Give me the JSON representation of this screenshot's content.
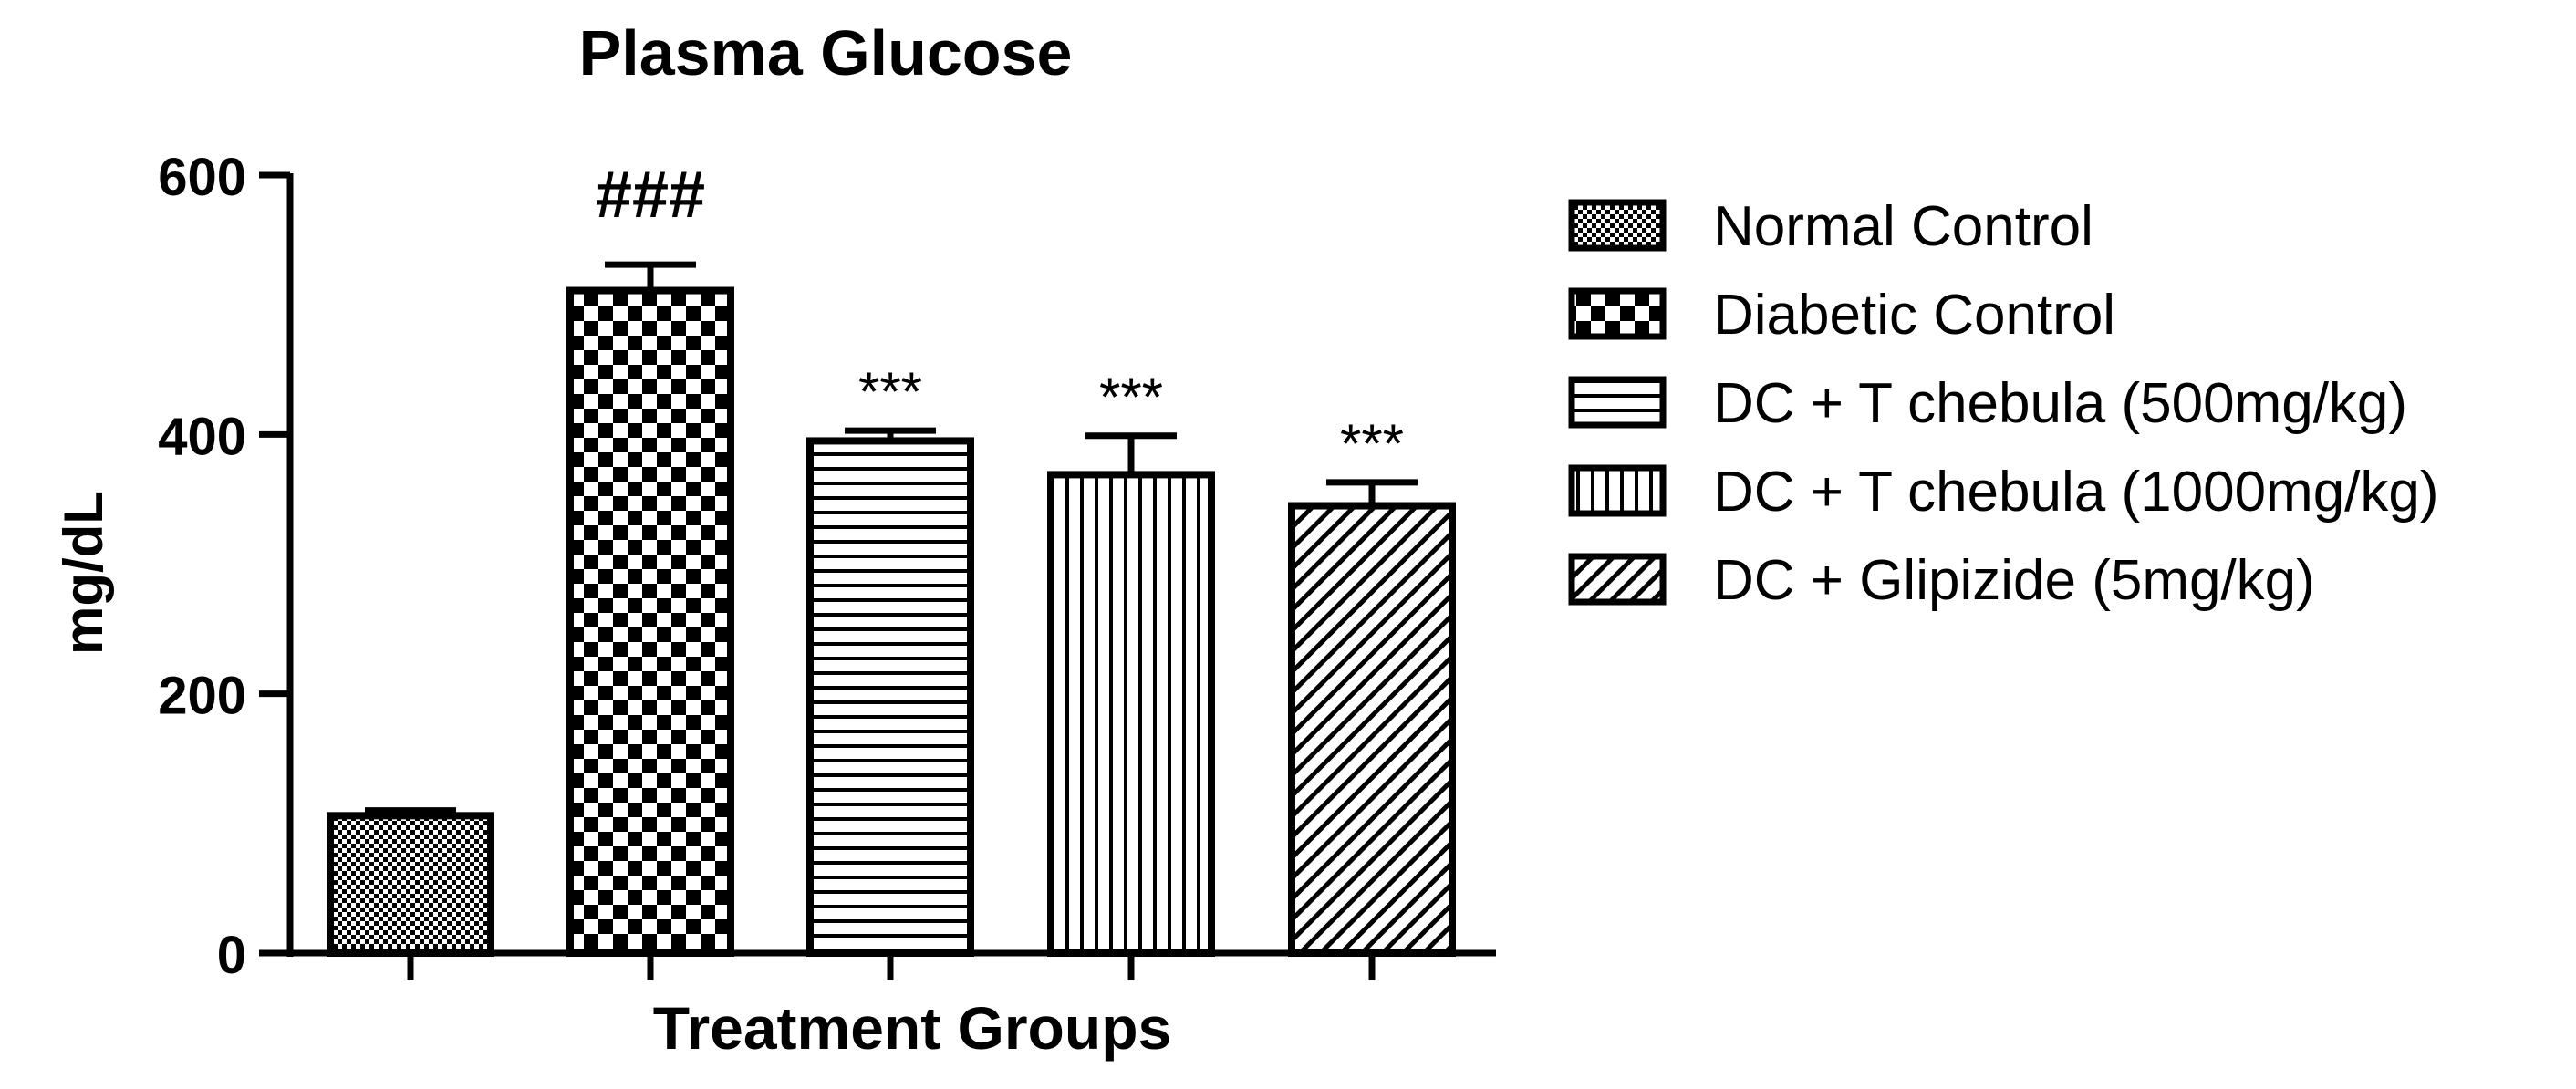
{
  "chart_data": {
    "type": "bar",
    "title": "Plasma Glucose",
    "xlabel": "Treatment Groups",
    "ylabel": "mg/dL",
    "ylim": [
      0,
      600
    ],
    "yticks": [
      "0",
      "200",
      "400",
      "600"
    ],
    "grid": false,
    "legend_position": "right",
    "series": [
      {
        "name": "Normal Control",
        "value": 106,
        "error": 4,
        "annotation": "",
        "pattern": "fine-checker"
      },
      {
        "name": "Diabetic Control",
        "value": 511,
        "error": 20,
        "annotation": "###",
        "pattern": "checker"
      },
      {
        "name": "DC + T chebula (500mg/kg)",
        "value": 395,
        "error": 8,
        "annotation": "***",
        "pattern": "horizontal-lines"
      },
      {
        "name": "DC + T chebula (1000mg/kg)",
        "value": 369,
        "error": 30,
        "annotation": "***",
        "pattern": "vertical-lines"
      },
      {
        "name": "DC + Glipizide (5mg/kg)",
        "value": 345,
        "error": 18,
        "annotation": "***",
        "pattern": "diagonal-lines"
      }
    ],
    "colors": {
      "ink": "#000000",
      "background": "#ffffff"
    }
  }
}
